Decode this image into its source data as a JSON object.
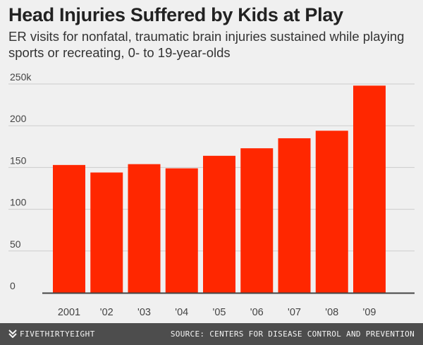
{
  "header": {
    "title": "Head Injuries Suffered by Kids at Play",
    "subtitle": "ER visits for nonfatal, traumatic brain injuries sustained while playing sports or recreating, 0- to 19-year-olds"
  },
  "footer": {
    "brand": "FIVETHIRTYEIGHT",
    "brand_icon": "fivethirtyeight-logo-icon",
    "source": "SOURCE: CENTERS FOR DISEASE CONTROL AND PREVENTION"
  },
  "colors": {
    "bar": "#ff2700",
    "grid": "#cdcdcd",
    "baseline": "#444444",
    "background": "#f0f0f0"
  },
  "chart_data": {
    "type": "bar",
    "categories": [
      "2001",
      "'02",
      "'03",
      "'04",
      "'05",
      "'06",
      "'07",
      "'08",
      "'09"
    ],
    "values": [
      153,
      144,
      154,
      149,
      164,
      173,
      185,
      194,
      248
    ],
    "title": "Head Injuries Suffered by Kids at Play",
    "xlabel": "",
    "ylabel": "",
    "ylim": [
      0,
      250
    ],
    "yticks": [
      0,
      50,
      100,
      150,
      200,
      250
    ],
    "ytick_labels": [
      "0",
      "50",
      "100",
      "150",
      "200",
      "250k"
    ],
    "grid": true,
    "legend": "none"
  }
}
